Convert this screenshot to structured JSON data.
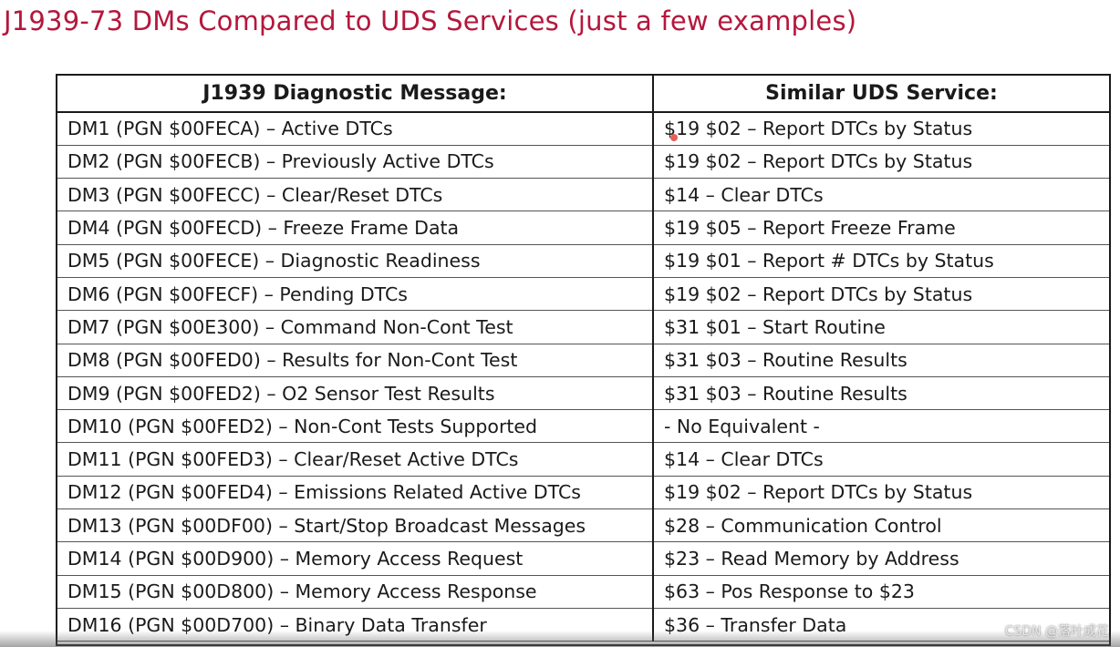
{
  "title": "J1939-73 DMs Compared to UDS Services (just a few examples)",
  "table": {
    "headers": [
      "J1939 Diagnostic Message:",
      "Similar UDS Service:"
    ],
    "rows": [
      [
        "DM1 (PGN $00FECA) – Active DTCs",
        "$19 $02 – Report DTCs by Status"
      ],
      [
        "DM2 (PGN $00FECB) – Previously Active DTCs",
        "$19 $02 – Report DTCs by Status"
      ],
      [
        "DM3 (PGN $00FECC) – Clear/Reset DTCs",
        "$14 – Clear DTCs"
      ],
      [
        "DM4 (PGN $00FECD) – Freeze Frame Data",
        "$19 $05 – Report Freeze Frame"
      ],
      [
        "DM5 (PGN $00FECE) – Diagnostic Readiness",
        "$19 $01 – Report # DTCs by Status"
      ],
      [
        "DM6 (PGN $00FECF) – Pending DTCs",
        "$19 $02 – Report DTCs by Status"
      ],
      [
        "DM7 (PGN $00E300) – Command Non-Cont Test",
        "$31 $01 – Start Routine"
      ],
      [
        "DM8 (PGN $00FED0) – Results for Non-Cont Test",
        "$31 $03 – Routine Results"
      ],
      [
        "DM9 (PGN $00FED2) – O2 Sensor Test Results",
        "$31 $03 – Routine Results"
      ],
      [
        "DM10 (PGN $00FED2) – Non-Cont Tests Supported",
        " - No Equivalent -"
      ],
      [
        "DM11 (PGN $00FED3) – Clear/Reset Active DTCs",
        "$14 – Clear DTCs"
      ],
      [
        "DM12 (PGN $00FED4) – Emissions Related Active DTCs",
        "$19 $02 – Report DTCs by Status"
      ],
      [
        "DM13 (PGN $00DF00) – Start/Stop Broadcast Messages",
        "$28 – Communication Control"
      ],
      [
        "DM14 (PGN $00D900) – Memory Access Request",
        "$23 – Read Memory by Address"
      ],
      [
        "DM15 (PGN $00D800) – Memory Access Response",
        "$63 – Pos Response to $23"
      ],
      [
        "DM16 (PGN $00D700) – Binary Data Transfer",
        "$36 – Transfer Data"
      ]
    ]
  },
  "watermark": "CSDN @落叶成花",
  "colors": {
    "title": "#b5173c",
    "text": "#1a1a1a",
    "border": "#1a1a1a"
  }
}
